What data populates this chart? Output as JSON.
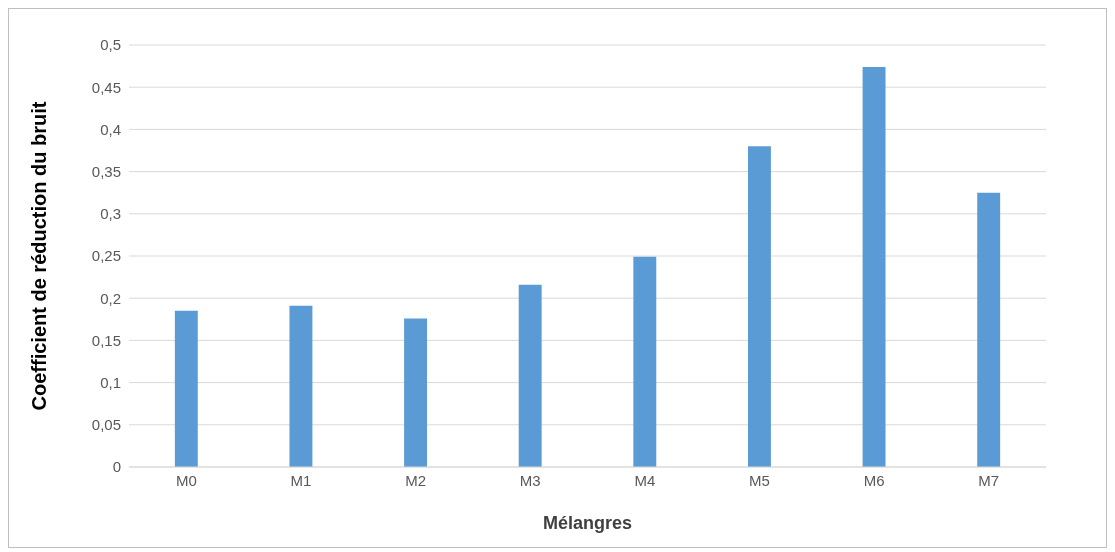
{
  "chart_data": {
    "type": "bar",
    "xlabel": "Mélangres",
    "ylabel": "Coefficient de réduction du bruit",
    "categories": [
      "M0",
      "M1",
      "M2",
      "M3",
      "M4",
      "M5",
      "M6",
      "M7"
    ],
    "values": [
      0.185,
      0.191,
      0.176,
      0.216,
      0.249,
      0.38,
      0.474,
      0.325
    ],
    "color": "#5b9bd5",
    "ylim": [
      0,
      0.5
    ],
    "yticks": [
      {
        "value": 0,
        "label": "0"
      },
      {
        "value": 0.05,
        "label": "0,05"
      },
      {
        "value": 0.1,
        "label": "0,1"
      },
      {
        "value": 0.15,
        "label": "0,15"
      },
      {
        "value": 0.2,
        "label": "0,2"
      },
      {
        "value": 0.25,
        "label": "0,25"
      },
      {
        "value": 0.3,
        "label": "0,3"
      },
      {
        "value": 0.35,
        "label": "0,35"
      },
      {
        "value": 0.4,
        "label": "0,4"
      },
      {
        "value": 0.45,
        "label": "0,45"
      },
      {
        "value": 0.5,
        "label": "0,5"
      }
    ],
    "grid": "y",
    "legend": false
  }
}
